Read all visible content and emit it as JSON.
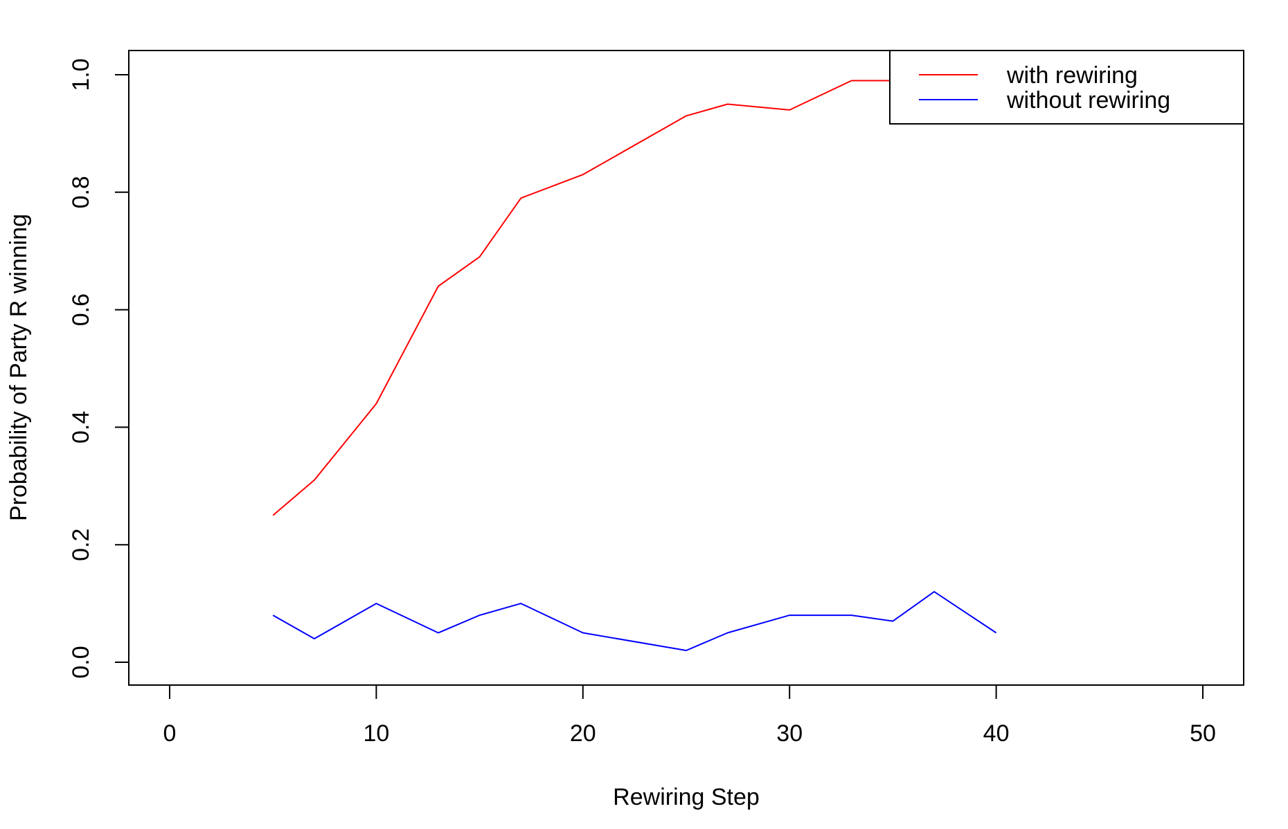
{
  "chart_data": {
    "type": "line",
    "title": "",
    "xlabel": "Rewiring Step",
    "ylabel": "Probability of Party R winning",
    "xlim": [
      0,
      50
    ],
    "ylim": [
      0.0,
      1.0
    ],
    "x_ticks": [
      "0",
      "10",
      "20",
      "30",
      "40",
      "50"
    ],
    "y_ticks": [
      "0.0",
      "0.2",
      "0.4",
      "0.6",
      "0.8",
      "1.0"
    ],
    "grid": false,
    "legend_position": "top-right",
    "series": [
      {
        "name": "with rewiring",
        "color": "#ff0000",
        "x": [
          5,
          7,
          10,
          13,
          15,
          17,
          20,
          25,
          27,
          30,
          33,
          35,
          37,
          40
        ],
        "y": [
          0.25,
          0.31,
          0.44,
          0.64,
          0.69,
          0.79,
          0.83,
          0.93,
          0.95,
          0.94,
          0.99,
          0.99,
          0.99,
          0.99
        ]
      },
      {
        "name": "without rewiring",
        "color": "#0000ff",
        "x": [
          5,
          7,
          10,
          13,
          15,
          17,
          20,
          25,
          27,
          30,
          33,
          35,
          37,
          40
        ],
        "y": [
          0.08,
          0.04,
          0.1,
          0.05,
          0.08,
          0.1,
          0.05,
          0.02,
          0.05,
          0.08,
          0.08,
          0.07,
          0.12,
          0.05
        ]
      }
    ]
  }
}
